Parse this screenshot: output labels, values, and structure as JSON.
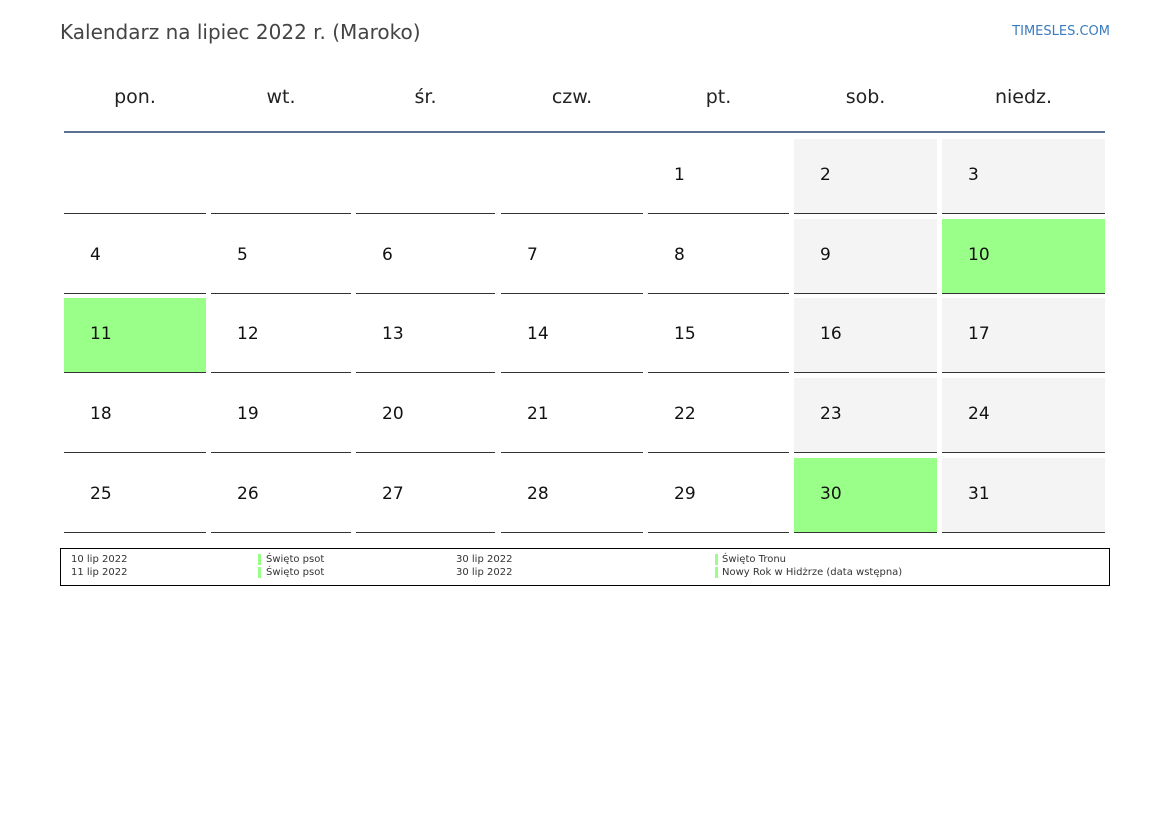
{
  "header": {
    "title": "Kalendarz na lipiec 2022 r. (Maroko)",
    "site": "TIMESLES.COM"
  },
  "weekdays": [
    "pon.",
    "wt.",
    "śr.",
    "czw.",
    "pt.",
    "sob.",
    "niedz."
  ],
  "weeks": [
    [
      null,
      null,
      null,
      null,
      1,
      2,
      3
    ],
    [
      4,
      5,
      6,
      7,
      8,
      9,
      10
    ],
    [
      11,
      12,
      13,
      14,
      15,
      16,
      17
    ],
    [
      18,
      19,
      20,
      21,
      22,
      23,
      24
    ],
    [
      25,
      26,
      27,
      28,
      29,
      30,
      31
    ]
  ],
  "highlighted_days": [
    10,
    11,
    30
  ],
  "holidays": [
    {
      "date": "10 lip 2022",
      "name": "Święto psot"
    },
    {
      "date": "11 lip 2022",
      "name": "Święto psot"
    },
    {
      "date": "30 lip 2022",
      "name": "Święto Tronu"
    },
    {
      "date": "30 lip 2022",
      "name": "Nowy Rok w Hidżrze (data wstępna)"
    }
  ]
}
